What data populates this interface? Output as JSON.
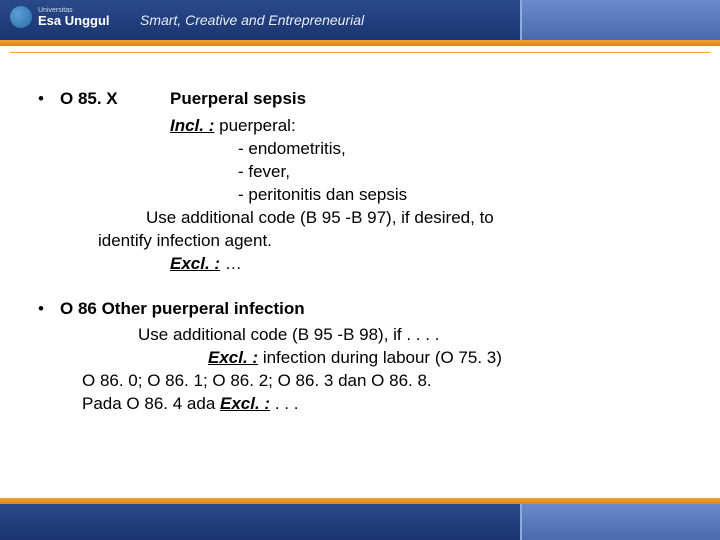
{
  "header": {
    "logo_small": "Universitas",
    "logo_big": "Esa Unggul",
    "tagline": "Smart, Creative and Entrepreneurial"
  },
  "s1": {
    "code": "O 85. X",
    "title": "Puerperal sepsis",
    "incl_label": "Incl. :",
    "incl_after": " puerperal:",
    "item1": "-  endometritis,",
    "item2": "-  fever,",
    "item3": "-  peritonitis dan sepsis",
    "use1": "Use additional code (B 95 -B 97), if desired, to",
    "use2": "identify infection agent.",
    "excl_label": "Excl. :",
    "excl_after": " …"
  },
  "s2": {
    "bullet_title": "O 86 Other puerperal infection",
    "line1": "Use additional code (B 95 -B 98), if . . . .",
    "line2_label": "Excl. :",
    "line2_after": " infection during labour (O 75. 3)",
    "line3": "O 86. 0;  O 86. 1;  O 86. 2;  O 86. 3  dan  O 86. 8.",
    "line4_pre": "Pada O 86. 4  ada ",
    "line4_label": "Excl. :",
    "line4_after": "  . . ."
  },
  "colors": {
    "header_bg": "#1a3570",
    "orange": "#f4a030",
    "text": "#000000"
  }
}
